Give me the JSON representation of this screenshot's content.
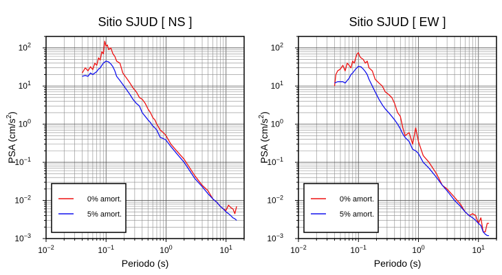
{
  "chart_data": [
    {
      "type": "line",
      "title": "Sitio SJUD [ NS ]",
      "xlabel": "Periodo (s)",
      "ylabel_main": "PSA (cm/s",
      "ylabel_sup": "2",
      "ylabel_end": ")",
      "xscale": "log",
      "yscale": "log",
      "xlim": [
        0.01,
        20
      ],
      "ylim": [
        0.001,
        200
      ],
      "grid": true,
      "legend_position": "bottom-left",
      "x_ticks": [
        {
          "base": "10",
          "exp": "−2"
        },
        {
          "base": "10",
          "exp": "−1"
        },
        {
          "base": "10",
          "exp": "0"
        },
        {
          "base": "10",
          "exp": "1"
        }
      ],
      "y_ticks": [
        {
          "base": "10",
          "exp": "−3"
        },
        {
          "base": "10",
          "exp": "−2"
        },
        {
          "base": "10",
          "exp": "−1"
        },
        {
          "base": "10",
          "exp": "0"
        },
        {
          "base": "10",
          "exp": "1"
        },
        {
          "base": "10",
          "exp": "2"
        }
      ],
      "series": [
        {
          "name": "0% amort.",
          "color": "#ee1111",
          "x": [
            0.04,
            0.045,
            0.05,
            0.055,
            0.06,
            0.065,
            0.07,
            0.075,
            0.08,
            0.085,
            0.09,
            0.095,
            0.1,
            0.105,
            0.11,
            0.12,
            0.13,
            0.14,
            0.15,
            0.17,
            0.19,
            0.22,
            0.25,
            0.28,
            0.32,
            0.36,
            0.4,
            0.45,
            0.5,
            0.55,
            0.6,
            0.65,
            0.7,
            0.8,
            0.9,
            1.0,
            1.2,
            1.5,
            2.0,
            3.0,
            4.0,
            5.0,
            6.0,
            7.0,
            8.0,
            9.0,
            10.0,
            11.0,
            12.0,
            13.0,
            14.0,
            15.0
          ],
          "y": [
            22,
            30,
            25,
            32,
            27,
            40,
            35,
            55,
            48,
            80,
            70,
            150,
            110,
            120,
            90,
            100,
            70,
            60,
            45,
            40,
            22,
            16,
            12,
            9,
            7,
            5,
            4.5,
            3.5,
            2.5,
            2.0,
            1.5,
            1.3,
            1.0,
            0.7,
            0.6,
            0.5,
            0.3,
            0.2,
            0.12,
            0.045,
            0.025,
            0.018,
            0.011,
            0.009,
            0.007,
            0.006,
            0.0055,
            0.0075,
            0.0065,
            0.006,
            0.0045,
            0.007
          ]
        },
        {
          "name": "5% amort.",
          "color": "#1111ee",
          "x": [
            0.04,
            0.045,
            0.05,
            0.055,
            0.06,
            0.065,
            0.07,
            0.075,
            0.08,
            0.085,
            0.09,
            0.1,
            0.11,
            0.12,
            0.13,
            0.14,
            0.15,
            0.17,
            0.19,
            0.22,
            0.25,
            0.28,
            0.32,
            0.36,
            0.4,
            0.45,
            0.5,
            0.55,
            0.6,
            0.65,
            0.7,
            0.8,
            0.9,
            1.0,
            1.2,
            1.5,
            2.0,
            3.0,
            4.0,
            5.0,
            6.0,
            7.0,
            8.0,
            9.0,
            10.0,
            11.0,
            12.0,
            13.0,
            14.0,
            15.0
          ],
          "y": [
            18,
            19,
            18,
            22,
            20,
            22,
            24,
            28,
            30,
            35,
            40,
            45,
            43,
            38,
            32,
            25,
            18,
            14,
            11,
            8,
            6,
            4.5,
            3.5,
            3.0,
            2.0,
            1.6,
            1.3,
            1.1,
            0.9,
            0.8,
            0.7,
            0.45,
            0.42,
            0.38,
            0.26,
            0.17,
            0.1,
            0.038,
            0.023,
            0.015,
            0.011,
            0.009,
            0.007,
            0.006,
            0.005,
            0.0045,
            0.004,
            0.0035,
            0.0033,
            0.003
          ]
        }
      ]
    },
    {
      "type": "line",
      "title": "Sitio SJUD [ EW ]",
      "xlabel": "Periodo (s)",
      "ylabel_main": "PSA (cm/s",
      "ylabel_sup": "2",
      "ylabel_end": ")",
      "xscale": "log",
      "yscale": "log",
      "xlim": [
        0.01,
        20
      ],
      "ylim": [
        0.001,
        200
      ],
      "grid": true,
      "legend_position": "bottom-left",
      "x_ticks": [
        {
          "base": "10",
          "exp": "−2"
        },
        {
          "base": "10",
          "exp": "−1"
        },
        {
          "base": "10",
          "exp": "0"
        },
        {
          "base": "10",
          "exp": "1"
        }
      ],
      "y_ticks": [
        {
          "base": "10",
          "exp": "−3"
        },
        {
          "base": "10",
          "exp": "−2"
        },
        {
          "base": "10",
          "exp": "−1"
        },
        {
          "base": "10",
          "exp": "0"
        },
        {
          "base": "10",
          "exp": "1"
        },
        {
          "base": "10",
          "exp": "2"
        }
      ],
      "series": [
        {
          "name": "0% amort.",
          "color": "#ee1111",
          "x": [
            0.04,
            0.042,
            0.045,
            0.05,
            0.055,
            0.06,
            0.065,
            0.07,
            0.075,
            0.08,
            0.085,
            0.09,
            0.095,
            0.1,
            0.105,
            0.11,
            0.12,
            0.13,
            0.14,
            0.15,
            0.17,
            0.19,
            0.22,
            0.25,
            0.28,
            0.32,
            0.36,
            0.4,
            0.45,
            0.5,
            0.55,
            0.6,
            0.7,
            0.8,
            0.9,
            1.0,
            1.2,
            1.5,
            2.0,
            2.5,
            3.0,
            4.0,
            5.0,
            6.0,
            7.0,
            8.0,
            9.0,
            10.0,
            11.0,
            12.0,
            13.0,
            14.0,
            15.0
          ],
          "y": [
            10,
            20,
            25,
            28,
            35,
            25,
            40,
            35,
            30,
            45,
            40,
            55,
            70,
            75,
            60,
            55,
            50,
            40,
            45,
            30,
            25,
            15,
            12,
            10,
            7,
            6,
            5,
            3.5,
            2.0,
            1.6,
            0.8,
            0.5,
            0.6,
            0.3,
            0.8,
            0.35,
            0.15,
            0.1,
            0.05,
            0.025,
            0.02,
            0.012,
            0.008,
            0.005,
            0.004,
            0.0045,
            0.004,
            0.0025,
            0.0035,
            0.0015,
            0.0015,
            0.0025,
            0.0025
          ]
        },
        {
          "name": "5% amort.",
          "color": "#1111ee",
          "x": [
            0.04,
            0.045,
            0.05,
            0.055,
            0.06,
            0.065,
            0.07,
            0.075,
            0.08,
            0.085,
            0.09,
            0.1,
            0.11,
            0.12,
            0.13,
            0.14,
            0.15,
            0.17,
            0.19,
            0.22,
            0.25,
            0.28,
            0.32,
            0.36,
            0.4,
            0.45,
            0.5,
            0.55,
            0.6,
            0.7,
            0.8,
            0.9,
            1.0,
            1.2,
            1.5,
            2.0,
            2.5,
            3.0,
            4.0,
            5.0,
            6.0,
            7.0,
            8.0,
            9.0,
            10.0,
            11.0,
            12.0,
            13.0,
            14.0,
            15.0
          ],
          "y": [
            12,
            13,
            13,
            13,
            12,
            14,
            16,
            20,
            22,
            25,
            28,
            33,
            32,
            28,
            24,
            20,
            15,
            10,
            7,
            4.5,
            3.2,
            2.5,
            2.0,
            1.6,
            1.3,
            1.0,
            0.75,
            0.55,
            0.45,
            0.35,
            0.22,
            0.2,
            0.17,
            0.1,
            0.07,
            0.04,
            0.025,
            0.018,
            0.01,
            0.007,
            0.005,
            0.004,
            0.0035,
            0.003,
            0.0025,
            0.0022,
            0.0015,
            0.0013,
            0.0012,
            0.0012
          ]
        }
      ]
    }
  ]
}
